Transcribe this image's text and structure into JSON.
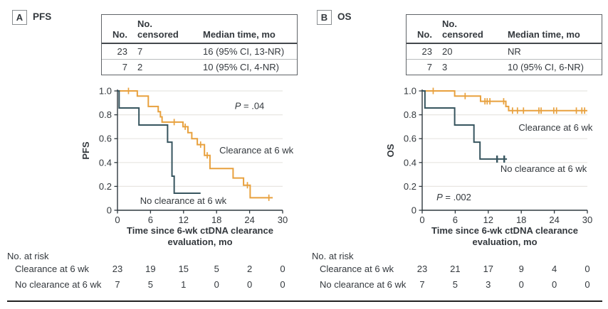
{
  "colors": {
    "clearance": "#E8A13E",
    "no_clearance": "#37555F",
    "text": "#33383D",
    "grid": "#E8E6E2",
    "axis": "#2F383E",
    "table_border": "#606468",
    "rule": "#222222"
  },
  "chart_data": [
    {
      "type": "line",
      "panel_tag": "A",
      "panel_title": "PFS",
      "ylabel": "PFS",
      "xlabel_lines": [
        "Time since 6-wk ctDNA clearance",
        "evaluation, mo"
      ],
      "xlim": [
        0,
        30
      ],
      "ylim": [
        0,
        1
      ],
      "x_ticks": [
        "0",
        "6",
        "12",
        "18",
        "24",
        "30"
      ],
      "y_ticks": [
        "0",
        "0.2",
        "0.4",
        "0.6",
        "0.8",
        "1.0"
      ],
      "grid": true,
      "p_value": {
        "prefix": "P",
        "rest": " = .04",
        "x": 21.3,
        "y": 0.875
      },
      "stats_table": {
        "col1": "No.",
        "col2a": "No.",
        "col2b": "censored",
        "col3": "Median time, mo",
        "rows": [
          [
            "23",
            "7",
            "16 (95% CI, 13-NR)"
          ],
          [
            "7",
            "2",
            "10 (95% CI, 4-NR)"
          ]
        ]
      },
      "series": [
        {
          "name": "Clearance at 6 wk",
          "color_key": "clearance",
          "steps": [
            [
              0,
              1
            ],
            [
              3.6,
              0.957
            ],
            [
              5.6,
              0.87
            ],
            [
              7.4,
              0.826
            ],
            [
              7.8,
              0.783
            ],
            [
              8.1,
              0.739
            ],
            [
              11.9,
              0.7
            ],
            [
              12.8,
              0.65
            ],
            [
              13.5,
              0.6
            ],
            [
              14.5,
              0.55
            ],
            [
              15.8,
              0.46
            ],
            [
              16.8,
              0.35
            ],
            [
              21.0,
              0.27
            ],
            [
              22.9,
              0.21
            ],
            [
              24.1,
              0.105
            ]
          ],
          "end": 28.2,
          "censors": [
            [
              2.0,
              1
            ],
            [
              10.3,
              0.739
            ],
            [
              12.3,
              0.7
            ],
            [
              15.1,
              0.55
            ],
            [
              16.3,
              0.46
            ],
            [
              23.6,
              0.21
            ],
            [
              27.5,
              0.105
            ]
          ],
          "censor_w": 1.7,
          "label": {
            "x": 18.5,
            "y": 0.503
          }
        },
        {
          "name": "No clearance at 6 wk",
          "color_key": "no_clearance",
          "steps": [
            [
              0,
              1
            ],
            [
              0.3,
              0.857
            ],
            [
              3.9,
              0.714
            ],
            [
              9.1,
              0.571
            ],
            [
              9.9,
              0.286
            ],
            [
              10.3,
              0.143
            ]
          ],
          "end": 15.1,
          "censors": [],
          "censor_w": 2.4,
          "label": {
            "x": 4.1,
            "y": 0.08
          }
        }
      ],
      "risk_table": {
        "title": "No. at risk",
        "time_points": [
          0,
          6,
          12,
          18,
          24,
          30
        ],
        "rows": [
          {
            "label": "Clearance at 6 wk",
            "values": [
              "23",
              "19",
              "15",
              "5",
              "2",
              "0"
            ]
          },
          {
            "label": "No clearance at 6 wk",
            "values": [
              "7",
              "5",
              "1",
              "0",
              "0",
              "0"
            ]
          }
        ]
      }
    },
    {
      "type": "line",
      "panel_tag": "B",
      "panel_title": "OS",
      "ylabel": "OS",
      "xlabel_lines": [
        "Time since 6-wk ctDNA clearance",
        "evaluation, mo"
      ],
      "xlim": [
        0,
        30
      ],
      "ylim": [
        0,
        1
      ],
      "x_ticks": [
        "0",
        "6",
        "12",
        "18",
        "24",
        "30"
      ],
      "y_ticks": [
        "0",
        "0.2",
        "0.4",
        "0.6",
        "0.8",
        "1.0"
      ],
      "grid": true,
      "p_value": {
        "prefix": "P",
        "rest": " = .002",
        "x": 2.6,
        "y": 0.11
      },
      "stats_table": {
        "col1": "No.",
        "col2a": "No.",
        "col2b": "censored",
        "col3": "Median time, mo",
        "rows": [
          [
            "23",
            "20",
            "NR"
          ],
          [
            "7",
            "3",
            "10 (95% CI, 6-NR)"
          ]
        ]
      },
      "series": [
        {
          "name": "Clearance at 6 wk",
          "color_key": "clearance",
          "steps": [
            [
              0,
              1
            ],
            [
              5.9,
              0.957
            ],
            [
              10.6,
              0.913
            ],
            [
              15.2,
              0.87
            ],
            [
              15.7,
              0.835
            ]
          ],
          "end": 30,
          "censors": [
            [
              2.0,
              1
            ],
            [
              7.8,
              0.957
            ],
            [
              11.4,
              0.913
            ],
            [
              11.8,
              0.913
            ],
            [
              12.3,
              0.913
            ],
            [
              14.8,
              0.913
            ],
            [
              16.4,
              0.835
            ],
            [
              17.3,
              0.835
            ],
            [
              18.4,
              0.835
            ],
            [
              21.2,
              0.835
            ],
            [
              21.6,
              0.835
            ],
            [
              23.9,
              0.835
            ],
            [
              24.4,
              0.835
            ],
            [
              28.0,
              0.835
            ],
            [
              29.0,
              0.835
            ],
            [
              29.5,
              0.835
            ]
          ],
          "censor_w": 1.7,
          "label": {
            "x": 17.5,
            "y": 0.693
          }
        },
        {
          "name": "No clearance at 6 wk",
          "color_key": "no_clearance",
          "steps": [
            [
              0,
              1
            ],
            [
              0.5,
              0.857
            ],
            [
              5.9,
              0.714
            ],
            [
              9.4,
              0.571
            ],
            [
              10.5,
              0.429
            ]
          ],
          "end": 15.4,
          "censors": [
            [
              13.6,
              0.429
            ],
            [
              14.9,
              0.429
            ]
          ],
          "censor_w": 2.4,
          "label": {
            "x": 14.2,
            "y": 0.348
          }
        }
      ],
      "risk_table": {
        "title": "No. at risk",
        "time_points": [
          0,
          6,
          12,
          18,
          24,
          30
        ],
        "rows": [
          {
            "label": "Clearance at 6 wk",
            "values": [
              "23",
              "21",
              "17",
              "9",
              "4",
              "0"
            ]
          },
          {
            "label": "No clearance at 6 wk",
            "values": [
              "7",
              "5",
              "3",
              "0",
              "0",
              "0"
            ]
          }
        ]
      }
    }
  ]
}
